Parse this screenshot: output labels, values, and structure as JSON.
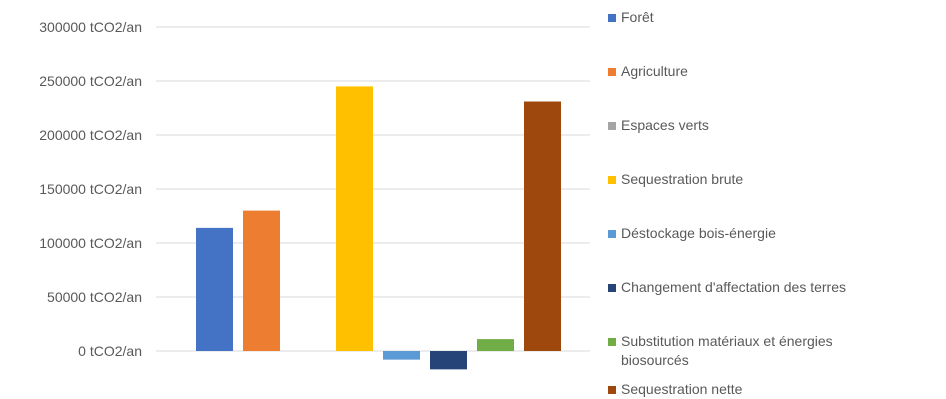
{
  "chart_data": {
    "type": "bar",
    "title": "",
    "xlabel": "",
    "ylabel": "",
    "ylim": [
      -20000,
      300000
    ],
    "yticks": [
      0,
      50000,
      100000,
      150000,
      200000,
      250000,
      300000
    ],
    "ytick_labels": [
      "0 tCO2/an",
      "50000 tCO2/an",
      "100000 tCO2/an",
      "150000 tCO2/an",
      "200000 tCO2/an",
      "250000 tCO2/an",
      "300000 tCO2/an"
    ],
    "grid": true,
    "legend_position": "right",
    "series": [
      {
        "name": "Forêt",
        "group": 0,
        "value": 114000,
        "color": "#4472C4"
      },
      {
        "name": "Agriculture",
        "group": 0,
        "value": 130000,
        "color": "#ED7D31"
      },
      {
        "name": "Espaces verts",
        "group": 0,
        "value": 0,
        "color": "#A5A5A5"
      },
      {
        "name": "Sequestration brute",
        "group": 1,
        "value": 245000,
        "color": "#FFC000"
      },
      {
        "name": "Déstockage bois-énergie",
        "group": 1,
        "value": -8000,
        "color": "#5B9BD5"
      },
      {
        "name": "Changement d'affectation des terres",
        "group": 1,
        "value": -17000,
        "color": "#264478"
      },
      {
        "name": "Substitution matériaux et énergies biosourcés",
        "group": 1,
        "value": 11000,
        "color": "#70AD47"
      },
      {
        "name": "Sequestration nette",
        "group": 1,
        "value": 231000,
        "color": "#9E480E"
      }
    ]
  }
}
